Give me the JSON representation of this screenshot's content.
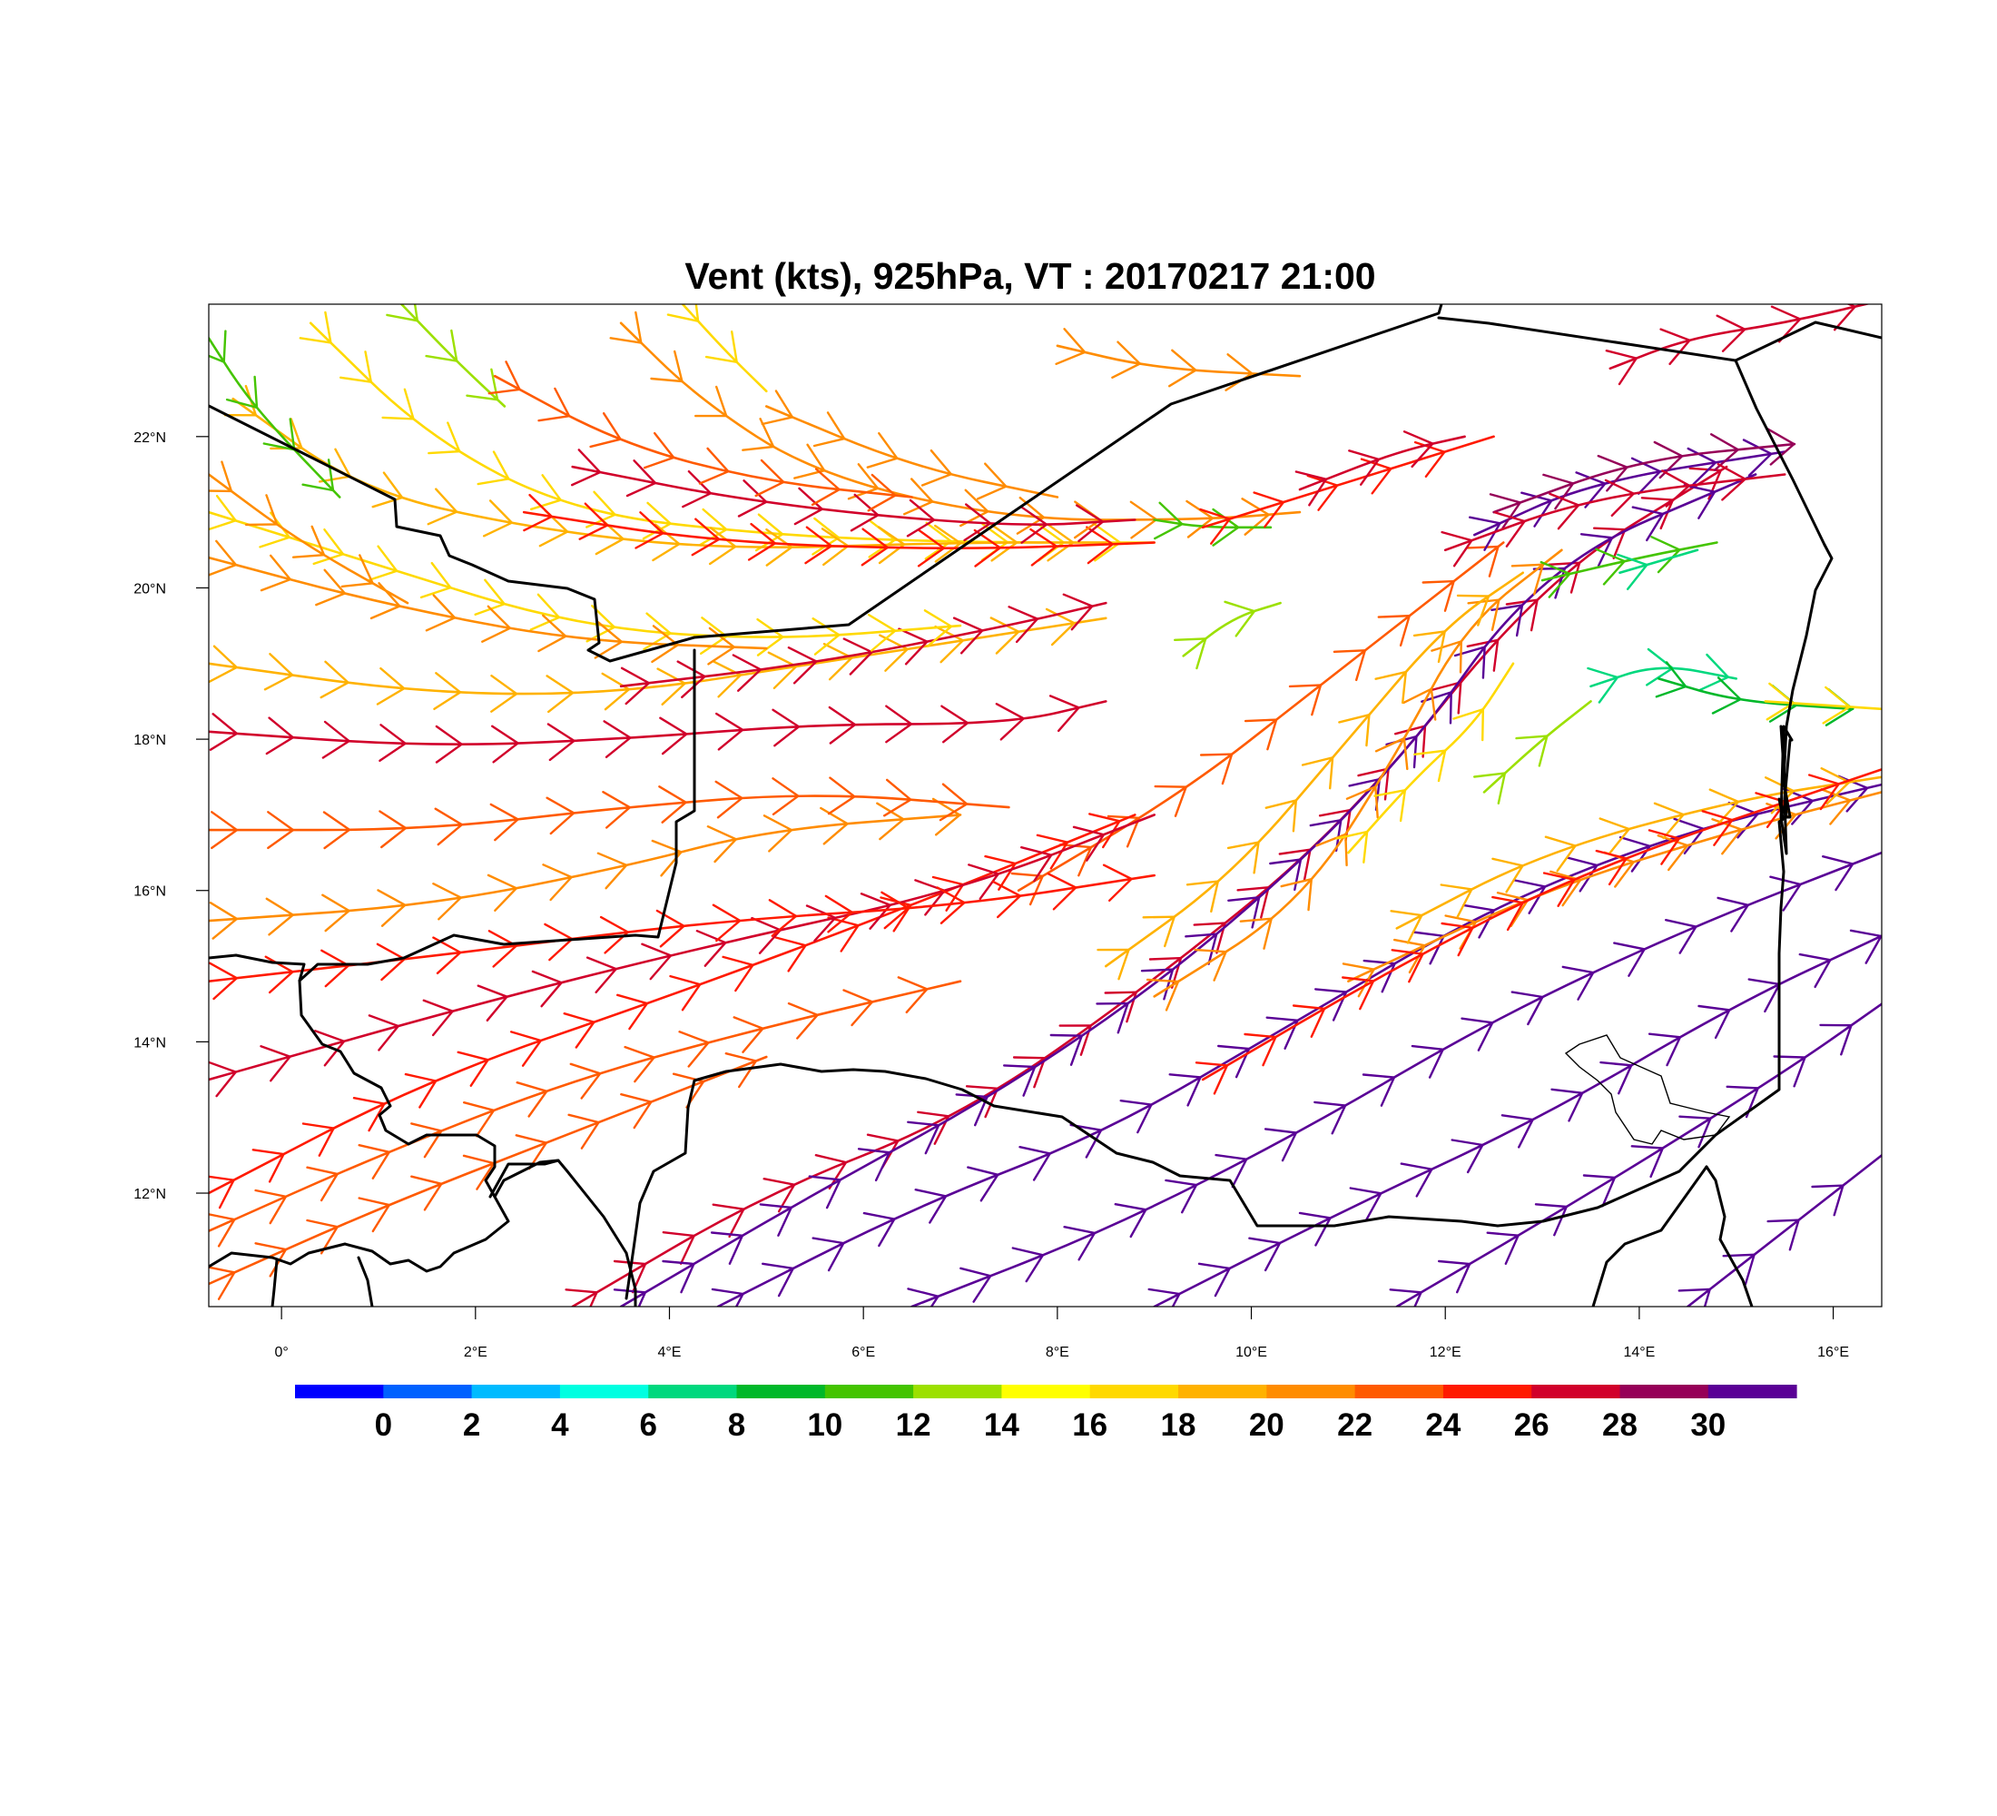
{
  "title": "Vent (kts), 925hPa, VT : 20170217  21:00",
  "axes": {
    "x_ticks": [
      {
        "lon": 0,
        "label": "0°"
      },
      {
        "lon": 2,
        "label": "2°E"
      },
      {
        "lon": 4,
        "label": "4°E"
      },
      {
        "lon": 6,
        "label": "6°E"
      },
      {
        "lon": 8,
        "label": "8°E"
      },
      {
        "lon": 10,
        "label": "10°E"
      },
      {
        "lon": 12,
        "label": "12°E"
      },
      {
        "lon": 14,
        "label": "14°E"
      },
      {
        "lon": 16,
        "label": "16°E"
      }
    ],
    "y_ticks": [
      {
        "lat": 12,
        "label": "12°N"
      },
      {
        "lat": 14,
        "label": "14°N"
      },
      {
        "lat": 16,
        "label": "16°N"
      },
      {
        "lat": 18,
        "label": "18°N"
      },
      {
        "lat": 20,
        "label": "20°N"
      },
      {
        "lat": 22,
        "label": "22°N"
      }
    ],
    "lon_range": [
      -0.75,
      16.5
    ],
    "lat_range": [
      10.5,
      23.75
    ]
  },
  "colorbar": {
    "colors": [
      "#0000ff",
      "#0061ff",
      "#00bbff",
      "#00ffe1",
      "#00d87e",
      "#00b82a",
      "#44c400",
      "#9ce000",
      "#ffff00",
      "#ffd900",
      "#ffb200",
      "#ff8c00",
      "#ff5a00",
      "#ff1a00",
      "#d1002b",
      "#960058",
      "#5a0096"
    ],
    "labels": [
      "0",
      "2",
      "4",
      "6",
      "8",
      "10",
      "12",
      "14",
      "16",
      "18",
      "20",
      "22",
      "24",
      "26",
      "28",
      "30"
    ]
  },
  "chart_data": {
    "type": "vector-field",
    "variable": "wind speed",
    "units": "kts",
    "level": "925hPa",
    "valid_time": "20170217 21:00",
    "streamlines": [
      {
        "speed": 26,
        "points": [
          [
            3.0,
            10.5
          ],
          [
            5.0,
            12.0
          ],
          [
            7.0,
            13.0
          ],
          [
            9.0,
            14.8
          ],
          [
            11.0,
            16.9
          ],
          [
            13.0,
            20.1
          ],
          [
            14.9,
            21.6
          ]
        ]
      },
      {
        "speed": 30,
        "points": [
          [
            3.5,
            10.5
          ],
          [
            5.5,
            12.0
          ],
          [
            7.5,
            13.4
          ],
          [
            9.5,
            15.2
          ],
          [
            11.5,
            17.6
          ],
          [
            13.0,
            20.3
          ],
          [
            15.2,
            21.5
          ]
        ]
      },
      {
        "speed": 20,
        "points": [
          [
            9.0,
            14.6
          ],
          [
            10.5,
            15.8
          ],
          [
            11.5,
            17.8
          ],
          [
            12.2,
            19.5
          ],
          [
            13.2,
            20.5
          ]
        ]
      },
      {
        "speed": 18,
        "points": [
          [
            8.5,
            15.0
          ],
          [
            9.8,
            16.2
          ],
          [
            11.0,
            18.0
          ],
          [
            12.0,
            19.5
          ],
          [
            12.8,
            20.2
          ]
        ]
      },
      {
        "speed": 22,
        "points": [
          [
            7.6,
            16.0
          ],
          [
            9.3,
            17.3
          ],
          [
            10.6,
            18.6
          ],
          [
            11.8,
            19.8
          ],
          [
            12.6,
            20.6
          ]
        ]
      },
      {
        "speed": 16,
        "points": [
          [
            11.0,
            16.5
          ],
          [
            11.7,
            17.5
          ],
          [
            12.3,
            18.2
          ],
          [
            12.7,
            19.0
          ]
        ]
      },
      {
        "speed": 12,
        "points": [
          [
            12.4,
            17.3
          ],
          [
            13.0,
            18.0
          ],
          [
            13.5,
            18.5
          ]
        ]
      },
      {
        "speed": 6,
        "points": [
          [
            13.5,
            18.7
          ],
          [
            14.2,
            19.0
          ],
          [
            15.0,
            18.8
          ]
        ]
      },
      {
        "speed": 8,
        "points": [
          [
            14.2,
            18.8
          ],
          [
            15.0,
            18.5
          ],
          [
            16.2,
            18.4
          ]
        ]
      },
      {
        "speed": 16,
        "points": [
          [
            15.3,
            18.5
          ],
          [
            16.5,
            18.4
          ]
        ]
      },
      {
        "speed": 10,
        "points": [
          [
            13.0,
            20.1
          ],
          [
            14.0,
            20.4
          ],
          [
            14.8,
            20.6
          ]
        ]
      },
      {
        "speed": 6,
        "points": [
          [
            13.8,
            20.2
          ],
          [
            14.6,
            20.5
          ]
        ]
      },
      {
        "speed": 12,
        "points": [
          [
            9.3,
            19.1
          ],
          [
            9.8,
            19.6
          ],
          [
            10.3,
            19.8
          ]
        ]
      },
      {
        "speed": 30,
        "points": [
          [
            12.3,
            20.7
          ],
          [
            13.5,
            21.4
          ],
          [
            15.5,
            21.8
          ]
        ]
      },
      {
        "speed": 28,
        "points": [
          [
            12.5,
            21.0
          ],
          [
            14.0,
            21.7
          ],
          [
            15.6,
            21.9
          ]
        ]
      },
      {
        "speed": 26,
        "points": [
          [
            12.0,
            20.5
          ],
          [
            13.5,
            21.2
          ],
          [
            15.5,
            21.5
          ]
        ]
      },
      {
        "speed": 24,
        "points": [
          [
            -0.75,
            12.0
          ],
          [
            1.5,
            13.5
          ],
          [
            4.0,
            14.6
          ],
          [
            6.5,
            15.8
          ],
          [
            8.8,
            17.0
          ]
        ]
      },
      {
        "speed": 26,
        "points": [
          [
            -0.75,
            13.5
          ],
          [
            2.0,
            14.5
          ],
          [
            4.5,
            15.3
          ],
          [
            7.0,
            16.0
          ],
          [
            9.0,
            17.0
          ]
        ]
      },
      {
        "speed": 24,
        "points": [
          [
            -0.75,
            14.8
          ],
          [
            2.0,
            15.2
          ],
          [
            4.5,
            15.6
          ],
          [
            7.0,
            15.8
          ],
          [
            9.0,
            16.2
          ]
        ]
      },
      {
        "speed": 22,
        "points": [
          [
            -0.75,
            11.5
          ],
          [
            1.0,
            12.5
          ],
          [
            3.0,
            13.5
          ],
          [
            5.0,
            14.2
          ],
          [
            7.0,
            14.8
          ]
        ]
      },
      {
        "speed": 22,
        "points": [
          [
            -0.75,
            10.8
          ],
          [
            1.0,
            11.8
          ],
          [
            3.0,
            12.8
          ],
          [
            5.0,
            13.8
          ]
        ]
      },
      {
        "speed": 20,
        "points": [
          [
            -0.75,
            15.6
          ],
          [
            1.5,
            15.8
          ],
          [
            3.5,
            16.3
          ],
          [
            5.0,
            16.8
          ],
          [
            7.0,
            17.0
          ]
        ]
      },
      {
        "speed": 22,
        "points": [
          [
            -0.75,
            16.8
          ],
          [
            1.5,
            16.8
          ],
          [
            3.5,
            17.1
          ],
          [
            5.5,
            17.3
          ],
          [
            7.5,
            17.1
          ]
        ]
      },
      {
        "speed": 30,
        "points": [
          [
            4.5,
            10.5
          ],
          [
            6.5,
            11.8
          ],
          [
            8.5,
            12.8
          ],
          [
            10.5,
            14.3
          ],
          [
            12.5,
            15.8
          ],
          [
            14.5,
            16.8
          ],
          [
            16.5,
            17.4
          ]
        ]
      },
      {
        "speed": 30,
        "points": [
          [
            6.5,
            10.5
          ],
          [
            8.5,
            11.5
          ],
          [
            10.5,
            12.8
          ],
          [
            12.5,
            14.3
          ],
          [
            14.5,
            15.5
          ],
          [
            16.5,
            16.5
          ]
        ]
      },
      {
        "speed": 30,
        "points": [
          [
            9.0,
            10.5
          ],
          [
            11.0,
            11.8
          ],
          [
            13.0,
            13.0
          ],
          [
            15.0,
            14.5
          ],
          [
            16.5,
            15.4
          ]
        ]
      },
      {
        "speed": 30,
        "points": [
          [
            11.5,
            10.5
          ],
          [
            13.5,
            12.0
          ],
          [
            15.5,
            13.6
          ],
          [
            16.5,
            14.5
          ]
        ]
      },
      {
        "speed": 30,
        "points": [
          [
            14.5,
            10.5
          ],
          [
            15.5,
            11.5
          ],
          [
            16.5,
            12.5
          ]
        ]
      },
      {
        "speed": 20,
        "points": [
          [
            11.0,
            14.8
          ],
          [
            13.0,
            16.0
          ],
          [
            15.0,
            16.8
          ],
          [
            16.5,
            17.3
          ]
        ]
      },
      {
        "speed": 18,
        "points": [
          [
            11.5,
            15.5
          ],
          [
            13.0,
            16.5
          ],
          [
            15.0,
            17.2
          ],
          [
            16.5,
            17.5
          ]
        ]
      },
      {
        "speed": 24,
        "points": [
          [
            9.5,
            13.5
          ],
          [
            11.5,
            15.0
          ],
          [
            13.5,
            16.3
          ],
          [
            16.5,
            17.6
          ]
        ]
      },
      {
        "speed": 26,
        "points": [
          [
            -0.75,
            18.1
          ],
          [
            1.5,
            17.9
          ],
          [
            3.5,
            18.0
          ],
          [
            5.5,
            18.2
          ],
          [
            7.5,
            18.2
          ],
          [
            8.5,
            18.5
          ]
        ]
      },
      {
        "speed": 18,
        "points": [
          [
            -0.75,
            19.0
          ],
          [
            1.5,
            18.6
          ],
          [
            3.5,
            18.6
          ],
          [
            5.5,
            19.0
          ],
          [
            7.5,
            19.4
          ],
          [
            8.5,
            19.6
          ]
        ]
      },
      {
        "speed": 26,
        "points": [
          [
            3.5,
            18.7
          ],
          [
            5.5,
            19.0
          ],
          [
            7.5,
            19.5
          ],
          [
            8.5,
            19.8
          ]
        ]
      },
      {
        "speed": 16,
        "points": [
          [
            -0.75,
            21.0
          ],
          [
            1.0,
            20.3
          ],
          [
            3.0,
            19.5
          ],
          [
            5.0,
            19.3
          ],
          [
            7.0,
            19.5
          ]
        ]
      },
      {
        "speed": 20,
        "points": [
          [
            -0.75,
            20.4
          ],
          [
            1.0,
            19.8
          ],
          [
            3.0,
            19.3
          ],
          [
            5.0,
            19.2
          ]
        ]
      },
      {
        "speed": 16,
        "points": [
          [
            0.3,
            23.5
          ],
          [
            1.5,
            22.0
          ],
          [
            3.0,
            21.0
          ],
          [
            5.0,
            20.7
          ],
          [
            7.0,
            20.6
          ],
          [
            9.0,
            20.6
          ]
        ]
      },
      {
        "speed": 18,
        "points": [
          [
            -0.5,
            22.5
          ],
          [
            0.8,
            21.3
          ],
          [
            2.5,
            20.8
          ],
          [
            4.5,
            20.5
          ],
          [
            7.0,
            20.6
          ],
          [
            8.5,
            20.6
          ]
        ]
      },
      {
        "speed": 24,
        "points": [
          [
            2.5,
            21.0
          ],
          [
            4.5,
            20.6
          ],
          [
            7.0,
            20.5
          ],
          [
            9.0,
            20.6
          ]
        ]
      },
      {
        "speed": 20,
        "points": [
          [
            3.5,
            23.5
          ],
          [
            4.3,
            22.5
          ],
          [
            5.5,
            21.5
          ],
          [
            7.5,
            20.9
          ],
          [
            9.5,
            20.9
          ],
          [
            10.5,
            21.0
          ]
        ]
      },
      {
        "speed": 10,
        "points": [
          [
            9.0,
            20.9
          ],
          [
            9.5,
            20.8
          ],
          [
            10.2,
            20.8
          ]
        ]
      },
      {
        "speed": 24,
        "points": [
          [
            9.5,
            20.8
          ],
          [
            11.0,
            21.4
          ],
          [
            12.5,
            22.0
          ]
        ]
      },
      {
        "speed": 26,
        "points": [
          [
            10.5,
            21.3
          ],
          [
            11.5,
            21.8
          ],
          [
            12.2,
            22.0
          ]
        ]
      },
      {
        "speed": 20,
        "points": [
          [
            8.0,
            23.2
          ],
          [
            9.0,
            22.9
          ],
          [
            10.5,
            22.8
          ]
        ]
      },
      {
        "speed": 26,
        "points": [
          [
            13.7,
            22.9
          ],
          [
            14.5,
            23.3
          ],
          [
            15.5,
            23.5
          ],
          [
            16.5,
            23.8
          ]
        ]
      },
      {
        "speed": 10,
        "points": [
          [
            -0.75,
            23.3
          ],
          [
            -0.4,
            22.6
          ],
          [
            0.0,
            22.0
          ],
          [
            0.6,
            21.2
          ]
        ]
      },
      {
        "speed": 16,
        "points": [
          [
            4.1,
            23.8
          ],
          [
            4.6,
            23.1
          ],
          [
            5.0,
            22.6
          ]
        ]
      },
      {
        "speed": 12,
        "points": [
          [
            1.2,
            23.8
          ],
          [
            1.8,
            23.0
          ],
          [
            2.3,
            22.4
          ]
        ]
      },
      {
        "speed": 20,
        "points": [
          [
            -0.75,
            21.5
          ],
          [
            0.2,
            20.6
          ],
          [
            1.3,
            19.8
          ]
        ]
      },
      {
        "speed": 26,
        "points": [
          [
            3.0,
            21.6
          ],
          [
            5.0,
            21.1
          ],
          [
            7.5,
            20.8
          ],
          [
            8.8,
            20.9
          ]
        ]
      },
      {
        "speed": 20,
        "points": [
          [
            5.0,
            22.4
          ],
          [
            6.5,
            21.6
          ],
          [
            8.0,
            21.2
          ]
        ]
      },
      {
        "speed": 22,
        "points": [
          [
            2.2,
            22.8
          ],
          [
            3.5,
            21.9
          ],
          [
            5.0,
            21.4
          ],
          [
            6.5,
            21.2
          ]
        ]
      }
    ]
  }
}
